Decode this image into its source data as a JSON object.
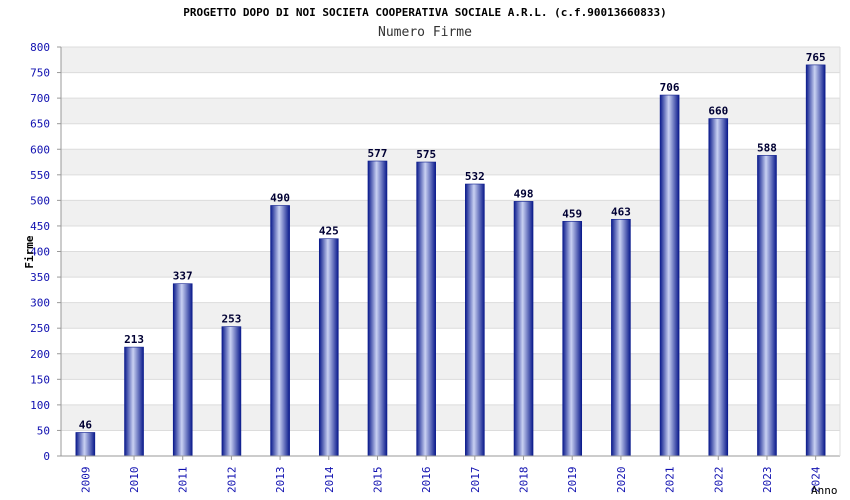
{
  "header": {
    "title": "PROGETTO DOPO DI NOI SOCIETA COOPERATIVA SOCIALE A.R.L. (c.f.90013660833)",
    "subtitle": "Numero Firme"
  },
  "colors": {
    "bar_dark": "#0a1a8c",
    "bar_light": "#c9d1f2",
    "axis_text": "#1010b0",
    "band": "#f0f0f0",
    "grid": "#dcdcdc"
  },
  "chart_data": {
    "type": "bar",
    "title": "PROGETTO DOPO DI NOI SOCIETA COOPERATIVA SOCIALE A.R.L. (c.f.90013660833)",
    "subtitle": "Numero Firme",
    "xlabel": "Anno",
    "ylabel": "Firme",
    "categories": [
      "2009",
      "2010",
      "2011",
      "2012",
      "2013",
      "2014",
      "2015",
      "2016",
      "2017",
      "2018",
      "2019",
      "2020",
      "2021",
      "2022",
      "2023",
      "2024"
    ],
    "values": [
      46,
      213,
      337,
      253,
      490,
      425,
      577,
      575,
      532,
      498,
      459,
      463,
      706,
      660,
      588,
      765
    ],
    "ylim": [
      0,
      800
    ],
    "yticks": [
      0,
      50,
      100,
      150,
      200,
      250,
      300,
      350,
      400,
      450,
      500,
      550,
      600,
      650,
      700,
      750,
      800
    ],
    "grid": true,
    "data_labels": true
  }
}
